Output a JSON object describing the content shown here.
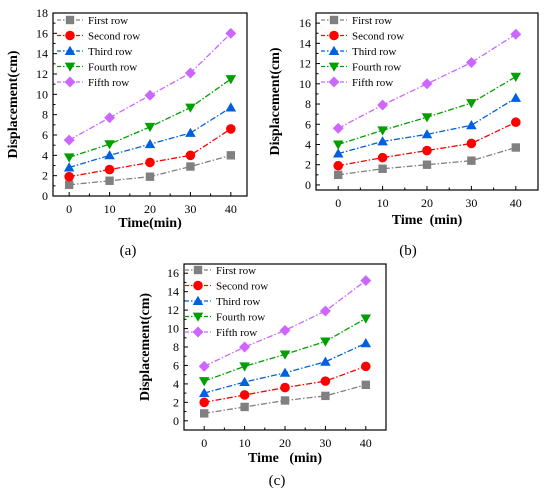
{
  "chart_data": [
    {
      "id": "a",
      "type": "line",
      "panel_label": "(a)",
      "xlabel": "Time(min)",
      "ylabel": "Displacement(cm)",
      "x": [
        0,
        10,
        20,
        30,
        40
      ],
      "xlim": [
        -4,
        44
      ],
      "ylim": [
        0,
        18
      ],
      "yticks": [
        0,
        2,
        4,
        6,
        8,
        10,
        12,
        14,
        16,
        18
      ],
      "legend_position": "top-left",
      "series": [
        {
          "name": "First row",
          "color": "#808080",
          "marker": "square",
          "values": [
            1.1,
            1.5,
            1.9,
            2.9,
            4.0
          ]
        },
        {
          "name": "Second row",
          "color": "#ff0000",
          "marker": "circle",
          "values": [
            1.9,
            2.6,
            3.3,
            4.0,
            6.6
          ]
        },
        {
          "name": "Third row",
          "color": "#0060e0",
          "marker": "triangle-up",
          "values": [
            2.8,
            4.0,
            5.1,
            6.2,
            8.7
          ]
        },
        {
          "name": "Fourth row",
          "color": "#00a000",
          "marker": "triangle-down",
          "values": [
            3.8,
            5.1,
            6.8,
            8.7,
            11.5
          ]
        },
        {
          "name": "Fifth row",
          "color": "#cc66ff",
          "marker": "diamond",
          "values": [
            5.5,
            7.7,
            9.9,
            12.1,
            16.0
          ]
        }
      ]
    },
    {
      "id": "b",
      "type": "line",
      "panel_label": "(b)",
      "xlabel": "Time  (min)",
      "ylabel": "Displacement(cm)",
      "x": [
        0,
        10,
        20,
        30,
        40
      ],
      "xlim": [
        -5,
        45
      ],
      "ylim": [
        -0.5,
        17
      ],
      "yticks": [
        0,
        2,
        4,
        6,
        8,
        10,
        12,
        14,
        16
      ],
      "legend_position": "top-left",
      "series": [
        {
          "name": "First row",
          "color": "#808080",
          "marker": "square",
          "values": [
            1.0,
            1.6,
            2.0,
            2.4,
            3.7
          ]
        },
        {
          "name": "Second row",
          "color": "#ff0000",
          "marker": "circle",
          "values": [
            1.9,
            2.7,
            3.4,
            4.1,
            6.2
          ]
        },
        {
          "name": "Third row",
          "color": "#0060e0",
          "marker": "triangle-up",
          "values": [
            3.1,
            4.3,
            5.0,
            5.9,
            8.6
          ]
        },
        {
          "name": "Fourth row",
          "color": "#00a000",
          "marker": "triangle-down",
          "values": [
            4.0,
            5.4,
            6.7,
            8.1,
            10.7
          ]
        },
        {
          "name": "Fifth row",
          "color": "#cc66ff",
          "marker": "diamond",
          "values": [
            5.6,
            7.9,
            10.0,
            12.1,
            14.9
          ]
        }
      ]
    },
    {
      "id": "c",
      "type": "line",
      "panel_label": "(c)",
      "xlabel": "Time   (min)",
      "ylabel": "Displacement(cm)",
      "x": [
        0,
        10,
        20,
        30,
        40
      ],
      "xlim": [
        -5,
        45
      ],
      "ylim": [
        -1,
        17
      ],
      "yticks": [
        0,
        2,
        4,
        6,
        8,
        10,
        12,
        14,
        16
      ],
      "legend_position": "top-left",
      "series": [
        {
          "name": "First row",
          "color": "#808080",
          "marker": "square",
          "values": [
            0.8,
            1.5,
            2.2,
            2.7,
            3.9
          ]
        },
        {
          "name": "Second row",
          "color": "#ff0000",
          "marker": "circle",
          "values": [
            2.0,
            2.8,
            3.6,
            4.3,
            5.9
          ]
        },
        {
          "name": "Third row",
          "color": "#0060e0",
          "marker": "triangle-up",
          "values": [
            3.0,
            4.2,
            5.2,
            6.4,
            8.4
          ]
        },
        {
          "name": "Fourth row",
          "color": "#00a000",
          "marker": "triangle-down",
          "values": [
            4.3,
            5.9,
            7.2,
            8.6,
            11.1
          ]
        },
        {
          "name": "Fifth row",
          "color": "#cc66ff",
          "marker": "diamond",
          "values": [
            5.9,
            8.0,
            9.8,
            11.9,
            15.2
          ]
        }
      ]
    }
  ]
}
